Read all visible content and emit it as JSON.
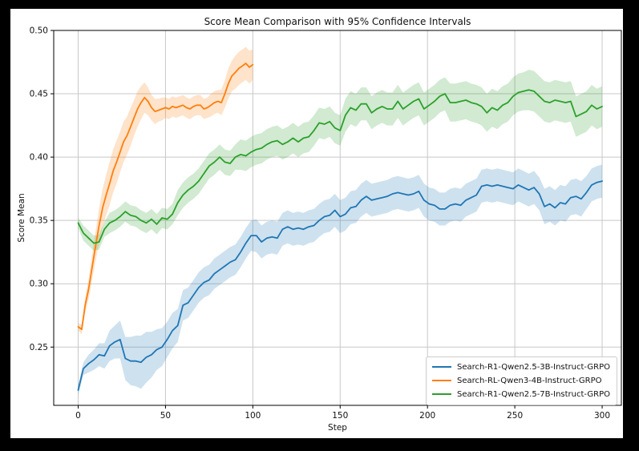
{
  "chart_data": {
    "type": "line",
    "title": "Score Mean Comparison with 95% Confidence Intervals",
    "xlabel": "Step",
    "ylabel": "Score Mean",
    "grid": true,
    "grid_color": "#c8c8c8",
    "legend_position": "lower right",
    "xlim": [
      -14,
      311
    ],
    "ylim": [
      0.204,
      0.5
    ],
    "xticks": {
      "values": [
        0,
        50,
        100,
        150,
        200,
        250,
        300
      ],
      "labels": [
        "0",
        "50",
        "100",
        "150",
        "200",
        "250",
        "300"
      ]
    },
    "yticks": {
      "values": [
        0.25,
        0.3,
        0.35,
        0.4,
        0.45,
        0.5
      ],
      "labels": [
        "0.25",
        "0.30",
        "0.35",
        "0.40",
        "0.45",
        "0.50"
      ]
    },
    "series": [
      {
        "name": "Search-R1-Qwen2.5-3B-Instruct-GRPO",
        "color": "#1f77b4",
        "x": [
          0,
          3,
          6,
          9,
          12,
          15,
          18,
          21,
          24,
          27,
          30,
          33,
          36,
          39,
          42,
          45,
          48,
          51,
          54,
          57,
          60,
          63,
          66,
          69,
          72,
          75,
          78,
          81,
          84,
          87,
          90,
          93,
          96,
          99,
          102,
          105,
          108,
          111,
          114,
          117,
          120,
          123,
          126,
          129,
          132,
          135,
          138,
          141,
          144,
          147,
          150,
          153,
          156,
          159,
          162,
          165,
          168,
          171,
          174,
          177,
          180,
          183,
          186,
          189,
          192,
          195,
          198,
          201,
          204,
          207,
          210,
          213,
          216,
          219,
          222,
          225,
          228,
          231,
          234,
          237,
          240,
          243,
          246,
          249,
          252,
          255,
          258,
          261,
          264,
          267,
          270,
          273,
          276,
          279,
          282,
          285,
          288,
          291,
          294,
          297,
          300
        ],
        "y": [
          0.216,
          0.233,
          0.237,
          0.24,
          0.244,
          0.243,
          0.251,
          0.254,
          0.256,
          0.241,
          0.239,
          0.239,
          0.238,
          0.242,
          0.244,
          0.248,
          0.25,
          0.256,
          0.263,
          0.267,
          0.283,
          0.285,
          0.291,
          0.297,
          0.301,
          0.303,
          0.308,
          0.311,
          0.314,
          0.317,
          0.319,
          0.325,
          0.332,
          0.338,
          0.338,
          0.333,
          0.336,
          0.337,
          0.336,
          0.343,
          0.345,
          0.343,
          0.344,
          0.343,
          0.345,
          0.346,
          0.35,
          0.353,
          0.354,
          0.358,
          0.353,
          0.355,
          0.36,
          0.361,
          0.366,
          0.369,
          0.366,
          0.367,
          0.368,
          0.369,
          0.371,
          0.372,
          0.371,
          0.37,
          0.371,
          0.373,
          0.366,
          0.363,
          0.362,
          0.359,
          0.359,
          0.362,
          0.363,
          0.362,
          0.366,
          0.368,
          0.37,
          0.377,
          0.378,
          0.377,
          0.378,
          0.377,
          0.376,
          0.375,
          0.378,
          0.376,
          0.374,
          0.376,
          0.371,
          0.361,
          0.363,
          0.36,
          0.364,
          0.363,
          0.368,
          0.369,
          0.367,
          0.372,
          0.378,
          0.38,
          0.381
        ],
        "ci": [
          0.004,
          0.005,
          0.007,
          0.008,
          0.009,
          0.01,
          0.012,
          0.013,
          0.015,
          0.017,
          0.019,
          0.02,
          0.021,
          0.02,
          0.018,
          0.016,
          0.015,
          0.014,
          0.014,
          0.013,
          0.012,
          0.012,
          0.012,
          0.012,
          0.012,
          0.012,
          0.012,
          0.012,
          0.012,
          0.012,
          0.012,
          0.012,
          0.012,
          0.012,
          0.013,
          0.013,
          0.013,
          0.013,
          0.013,
          0.013,
          0.013,
          0.013,
          0.013,
          0.013,
          0.013,
          0.013,
          0.013,
          0.013,
          0.013,
          0.013,
          0.013,
          0.013,
          0.013,
          0.013,
          0.013,
          0.013,
          0.013,
          0.013,
          0.013,
          0.013,
          0.013,
          0.013,
          0.013,
          0.013,
          0.013,
          0.013,
          0.013,
          0.013,
          0.013,
          0.013,
          0.013,
          0.013,
          0.013,
          0.013,
          0.013,
          0.013,
          0.013,
          0.013,
          0.013,
          0.013,
          0.013,
          0.013,
          0.013,
          0.013,
          0.013,
          0.013,
          0.013,
          0.013,
          0.013,
          0.014,
          0.014,
          0.014,
          0.014,
          0.014,
          0.014,
          0.014,
          0.014,
          0.013,
          0.013,
          0.013,
          0.013
        ]
      },
      {
        "name": "Search-RL-Qwen3-4B-Instruct-GRPO",
        "color": "#ff7f0e",
        "x": [
          0,
          2,
          4,
          6,
          8,
          10,
          12,
          14,
          16,
          18,
          20,
          22,
          24,
          26,
          28,
          30,
          32,
          34,
          36,
          38,
          40,
          42,
          44,
          46,
          48,
          50,
          52,
          54,
          56,
          58,
          60,
          62,
          64,
          66,
          68,
          70,
          72,
          74,
          76,
          78,
          80,
          82,
          84,
          86,
          88,
          90,
          92,
          94,
          96,
          98,
          100
        ],
        "y": [
          0.266,
          0.264,
          0.283,
          0.296,
          0.313,
          0.33,
          0.346,
          0.36,
          0.37,
          0.379,
          0.389,
          0.396,
          0.404,
          0.412,
          0.417,
          0.424,
          0.431,
          0.438,
          0.443,
          0.447,
          0.444,
          0.439,
          0.436,
          0.437,
          0.438,
          0.439,
          0.438,
          0.44,
          0.439,
          0.44,
          0.441,
          0.439,
          0.438,
          0.44,
          0.441,
          0.441,
          0.438,
          0.439,
          0.441,
          0.443,
          0.444,
          0.443,
          0.45,
          0.458,
          0.464,
          0.467,
          0.47,
          0.472,
          0.474,
          0.471,
          0.473
        ],
        "ci": [
          0.003,
          0.004,
          0.006,
          0.008,
          0.01,
          0.012,
          0.014,
          0.015,
          0.016,
          0.017,
          0.017,
          0.017,
          0.016,
          0.016,
          0.015,
          0.015,
          0.014,
          0.014,
          0.013,
          0.012,
          0.011,
          0.01,
          0.01,
          0.009,
          0.009,
          0.008,
          0.008,
          0.008,
          0.008,
          0.008,
          0.008,
          0.008,
          0.008,
          0.008,
          0.008,
          0.008,
          0.008,
          0.008,
          0.009,
          0.009,
          0.009,
          0.01,
          0.011,
          0.012,
          0.012,
          0.013,
          0.013,
          0.013,
          0.013,
          0.013,
          0.012
        ]
      },
      {
        "name": "Search-R1-Qwen2.5-7B-Instruct-GRPO",
        "color": "#2ca02c",
        "x": [
          0,
          3,
          6,
          9,
          12,
          15,
          18,
          21,
          24,
          27,
          30,
          33,
          36,
          39,
          42,
          45,
          48,
          51,
          54,
          57,
          60,
          63,
          66,
          69,
          72,
          75,
          78,
          81,
          84,
          87,
          90,
          93,
          96,
          99,
          102,
          105,
          108,
          111,
          114,
          117,
          120,
          123,
          126,
          129,
          132,
          135,
          138,
          141,
          144,
          147,
          150,
          153,
          156,
          159,
          162,
          165,
          168,
          171,
          174,
          177,
          180,
          183,
          186,
          189,
          192,
          195,
          198,
          201,
          204,
          207,
          210,
          213,
          216,
          219,
          222,
          225,
          228,
          231,
          234,
          237,
          240,
          243,
          246,
          249,
          252,
          255,
          258,
          261,
          264,
          267,
          270,
          273,
          276,
          279,
          282,
          285,
          288,
          291,
          294,
          297,
          300
        ],
        "y": [
          0.348,
          0.34,
          0.336,
          0.332,
          0.333,
          0.343,
          0.348,
          0.35,
          0.353,
          0.357,
          0.354,
          0.353,
          0.35,
          0.348,
          0.351,
          0.347,
          0.352,
          0.351,
          0.355,
          0.364,
          0.37,
          0.374,
          0.377,
          0.381,
          0.387,
          0.393,
          0.396,
          0.4,
          0.396,
          0.395,
          0.4,
          0.402,
          0.401,
          0.404,
          0.406,
          0.407,
          0.41,
          0.412,
          0.413,
          0.41,
          0.412,
          0.415,
          0.412,
          0.415,
          0.416,
          0.421,
          0.427,
          0.426,
          0.428,
          0.423,
          0.421,
          0.433,
          0.439,
          0.437,
          0.442,
          0.442,
          0.435,
          0.438,
          0.44,
          0.438,
          0.438,
          0.444,
          0.438,
          0.441,
          0.444,
          0.446,
          0.438,
          0.441,
          0.444,
          0.448,
          0.45,
          0.443,
          0.443,
          0.444,
          0.445,
          0.443,
          0.442,
          0.44,
          0.435,
          0.439,
          0.437,
          0.441,
          0.443,
          0.448,
          0.451,
          0.452,
          0.453,
          0.452,
          0.448,
          0.444,
          0.443,
          0.445,
          0.444,
          0.443,
          0.444,
          0.432,
          0.434,
          0.436,
          0.441,
          0.438,
          0.44
        ],
        "ci": [
          0.004,
          0.006,
          0.006,
          0.006,
          0.006,
          0.006,
          0.008,
          0.008,
          0.008,
          0.008,
          0.008,
          0.008,
          0.008,
          0.008,
          0.008,
          0.008,
          0.008,
          0.008,
          0.008,
          0.01,
          0.01,
          0.01,
          0.01,
          0.01,
          0.01,
          0.01,
          0.01,
          0.01,
          0.01,
          0.01,
          0.01,
          0.012,
          0.012,
          0.012,
          0.012,
          0.012,
          0.012,
          0.012,
          0.012,
          0.012,
          0.012,
          0.012,
          0.012,
          0.012,
          0.012,
          0.012,
          0.012,
          0.012,
          0.012,
          0.012,
          0.012,
          0.013,
          0.013,
          0.013,
          0.013,
          0.013,
          0.013,
          0.013,
          0.013,
          0.013,
          0.013,
          0.013,
          0.013,
          0.013,
          0.013,
          0.013,
          0.013,
          0.013,
          0.013,
          0.013,
          0.013,
          0.015,
          0.015,
          0.015,
          0.015,
          0.015,
          0.015,
          0.015,
          0.015,
          0.015,
          0.015,
          0.015,
          0.015,
          0.015,
          0.015,
          0.015,
          0.016,
          0.016,
          0.016,
          0.016,
          0.016,
          0.016,
          0.016,
          0.016,
          0.016,
          0.016,
          0.016,
          0.016,
          0.016,
          0.016,
          0.016
        ]
      }
    ]
  }
}
